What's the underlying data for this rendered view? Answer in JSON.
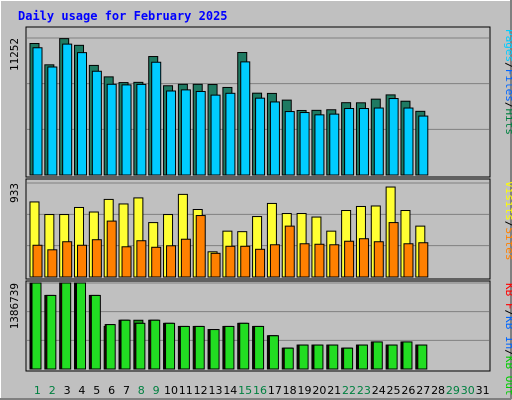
{
  "chart_data": {
    "title": "Daily usage for February 2025",
    "x_labels": [
      "1",
      "2",
      "3",
      "4",
      "5",
      "6",
      "7",
      "8",
      "9",
      "10",
      "11",
      "12",
      "13",
      "14",
      "15",
      "16",
      "17",
      "18",
      "19",
      "20",
      "21",
      "22",
      "23",
      "24",
      "25",
      "26",
      "27",
      "28",
      "29",
      "30",
      "31"
    ],
    "weekend_days": [
      1,
      2,
      8,
      9,
      15,
      16,
      22,
      23,
      29,
      30
    ],
    "panels": [
      {
        "type": "bar",
        "max_label": "11252",
        "ymax": 11252,
        "legend": [
          {
            "text": "Pages",
            "color": "#00ccff"
          },
          {
            "text": "Files",
            "color": "#0066ff"
          },
          {
            "text": "Hits",
            "color": "#008040"
          }
        ],
        "series": [
          {
            "name": "Hits",
            "color": "#1f7a62",
            "values": [
              10800,
              9050,
              11200,
              10650,
              9000,
              8060,
              7590,
              7610,
              9730,
              7330,
              7450,
              7450,
              7430,
              7190,
              10060,
              6720,
              6700,
              6150,
              5300,
              5310,
              5360,
              5940,
              5930,
              6230,
              6580,
              6060,
              5230,
              0,
              0,
              0,
              0
            ]
          },
          {
            "name": "Pages",
            "color": "#00ccff",
            "values": [
              10450,
              8870,
              10750,
              10050,
              8520,
              7450,
              7400,
              7440,
              9260,
              6900,
              6990,
              6860,
              6560,
              6710,
              9290,
              6310,
              6000,
              5210,
              5130,
              4940,
              5000,
              5460,
              5460,
              5500,
              6280,
              5500,
              4840,
              0,
              0,
              0,
              0
            ]
          }
        ]
      },
      {
        "type": "bar",
        "max_label": "933",
        "ymax": 933,
        "legend": [
          {
            "text": "Visits",
            "color": "#ffff00"
          },
          {
            "text": "Sites",
            "color": "#ff8000"
          }
        ],
        "series": [
          {
            "name": "Visits",
            "color": "#ffff33",
            "values": [
              745,
              620,
              620,
              690,
              645,
              770,
              725,
              785,
              540,
              620,
              820,
              670,
              250,
              455,
              450,
              600,
              730,
              630,
              630,
              595,
              455,
              660,
              700,
              705,
              893,
              660,
              505,
              0,
              0,
              0,
              0
            ]
          },
          {
            "name": "Sites",
            "color": "#ff8000",
            "values": [
              315,
              270,
              350,
              315,
              370,
              555,
              300,
              360,
              295,
              310,
              375,
              610,
              235,
              305,
              305,
              275,
              320,
              505,
              330,
              325,
              320,
              355,
              380,
              350,
              540,
              330,
              340,
              0,
              0,
              0,
              0
            ]
          }
        ]
      },
      {
        "type": "bar",
        "max_label": "1386739",
        "ymax": 1386739,
        "legend": [
          {
            "text": "KB F",
            "color": "#ff0000"
          },
          {
            "text": "KB In",
            "color": "#0066ff"
          },
          {
            "text": "KB Out",
            "color": "#00cc00"
          }
        ],
        "series": [
          {
            "name": "KB F",
            "color": "#1a8f1a",
            "values": [
              1386739,
              1186000,
              1386739,
              1386739,
              1186000,
              686000,
              786000,
              786000,
              786000,
              736000,
              686000,
              686000,
              636000,
              686000,
              736000,
              686000,
              536000,
              336000,
              386000,
              386000,
              386000,
              336000,
              386000,
              436000,
              386000,
              436000,
              386000,
              0,
              0,
              0,
              0
            ]
          },
          {
            "name": "KB In",
            "color": "#e8141a",
            "values": [
              1386739,
              1186000,
              1386739,
              1386739,
              1186000,
              716000,
              786000,
              736000,
              786000,
              736000,
              686000,
              686000,
              636000,
              686000,
              736000,
              686000,
              536000,
              336000,
              386000,
              386000,
              386000,
              336000,
              386000,
              436000,
              386000,
              436000,
              386000,
              0,
              0,
              0,
              0
            ]
          },
          {
            "name": "KB Out",
            "color": "#22dd22",
            "values": [
              1386739,
              1186000,
              1386739,
              1386739,
              1186000,
              716000,
              786000,
              736000,
              786000,
              736000,
              686000,
              686000,
              636000,
              686000,
              736000,
              686000,
              536000,
              336000,
              386000,
              386000,
              386000,
              336000,
              386000,
              436000,
              386000,
              436000,
              386000,
              0,
              0,
              0,
              0
            ]
          }
        ]
      }
    ]
  }
}
